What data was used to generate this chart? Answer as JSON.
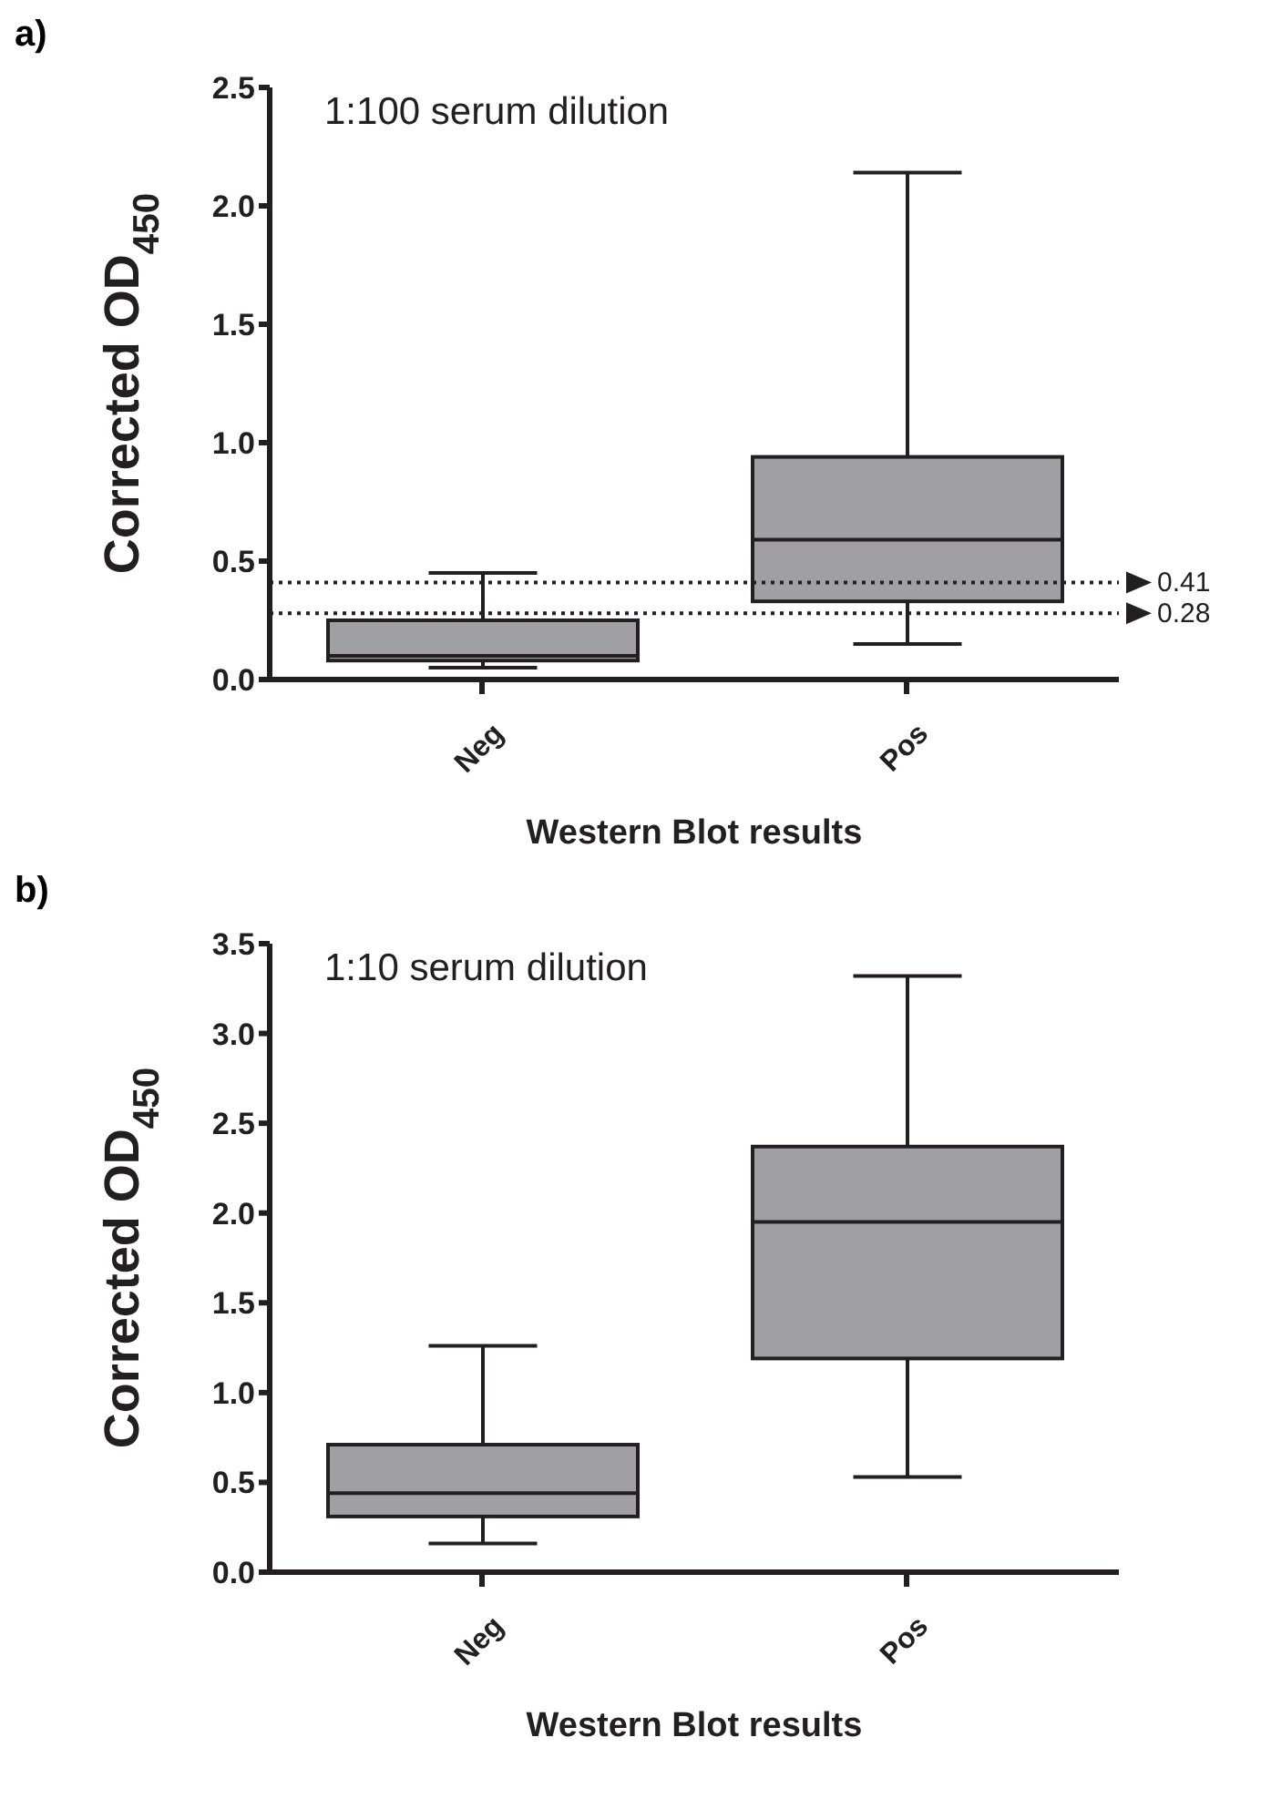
{
  "chart_data": [
    {
      "type": "box",
      "title": "a)",
      "xlabel": "Western Blot results",
      "ylabel": "Corrected OD$_{450}$",
      "annotations": [
        "1:100 serum dilution"
      ],
      "categories": [
        "Neg",
        "Pos"
      ],
      "color": "#a0a0a4",
      "boxes": [
        {
          "low": 0.05,
          "q1": 0.08,
          "median": 0.1,
          "q3": 0.25,
          "high": 0.45
        },
        {
          "low": 0.15,
          "q1": 0.33,
          "median": 0.59,
          "q3": 0.94,
          "high": 2.14
        }
      ],
      "ylim": [
        0,
        2.5
      ],
      "yticks": [
        {
          "value": 0,
          "label": "0.0"
        },
        0.5,
        {
          "value": 1,
          "label": "1.0"
        },
        1.5,
        {
          "value": 2,
          "label": "2.0"
        },
        2.5
      ],
      "grid": false,
      "ref_lines": [
        {
          "axis": "y",
          "value": 0.41,
          "label": "0.41",
          "line_style": "dotted"
        },
        {
          "axis": "y",
          "value": 0.28,
          "label": "0.28",
          "line_style": "dotted"
        }
      ]
    },
    {
      "type": "box",
      "title": "b)",
      "xlabel": "Western Blot results",
      "ylabel": "Corrected OD$_{450}$",
      "annotations": [
        "1:10 serum dilution"
      ],
      "categories": [
        "Neg",
        "Pos"
      ],
      "color": "#a0a0a4",
      "boxes": [
        {
          "low": 0.16,
          "q1": 0.31,
          "median": 0.44,
          "q3": 0.71,
          "high": 1.26
        },
        {
          "low": 0.53,
          "q1": 1.19,
          "median": 1.95,
          "q3": 2.37,
          "high": 3.32
        }
      ],
      "ylim": [
        0,
        3.5
      ],
      "yticks": [
        {
          "value": 0,
          "label": "0.0"
        },
        0.5,
        {
          "value": 1,
          "label": "1.0"
        },
        1.5,
        {
          "value": 2,
          "label": "2.0"
        },
        2.5,
        {
          "value": 3,
          "label": "3.0"
        },
        3.5
      ],
      "grid": false
    }
  ]
}
